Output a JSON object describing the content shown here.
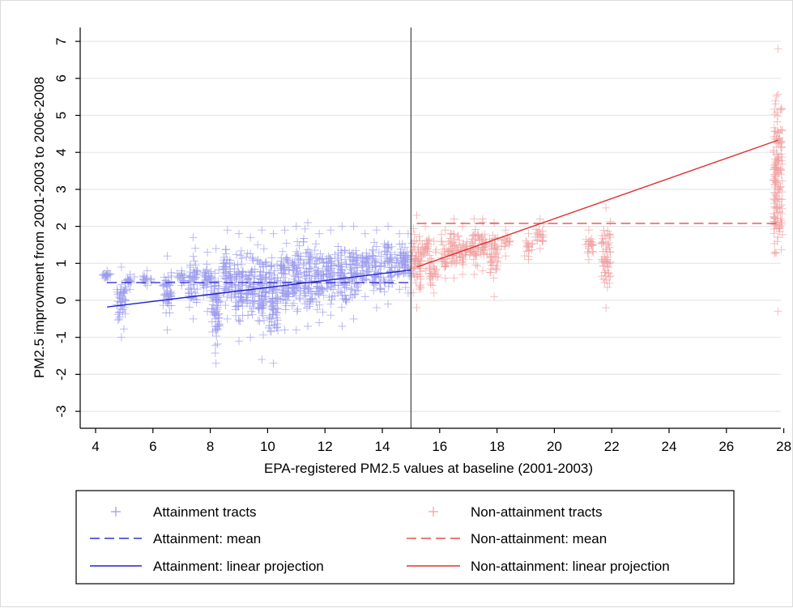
{
  "chart_data": {
    "type": "scatter",
    "xlabel": "EPA-registered PM2.5 values at baseline (2001-2003)",
    "ylabel": "PM2.5 improvment from 2001-2003 to 2006-2008",
    "xlim": [
      4,
      28.5
    ],
    "ylim": [
      -3.4,
      7.1
    ],
    "x_ticks": [
      4,
      6,
      8,
      10,
      12,
      14,
      16,
      18,
      20,
      22,
      24,
      26,
      28
    ],
    "y_ticks": [
      -3,
      -2,
      -1,
      0,
      1,
      2,
      3,
      4,
      5,
      6,
      7
    ],
    "grid": "horizontal",
    "threshold_x": 15,
    "legend_position": "bottom",
    "series": [
      {
        "name": "Attainment tracts",
        "kind": "scatter",
        "marker": "plus",
        "color": "#9999ee",
        "clusters": [
          {
            "x": 4.4,
            "y_min": 0.55,
            "y_max": 0.8
          },
          {
            "x": 4.9,
            "y_min": -1.0,
            "y_max": 0.9
          },
          {
            "x": 5.2,
            "y_min": 0.3,
            "y_max": 0.7
          },
          {
            "x": 5.8,
            "y_min": 0.4,
            "y_max": 0.8
          },
          {
            "x": 6.5,
            "y_min": -0.8,
            "y_max": 1.2
          },
          {
            "x": 7.0,
            "y_min": 0.4,
            "y_max": 0.8
          },
          {
            "x": 7.4,
            "y_min": -0.5,
            "y_max": 1.7
          },
          {
            "x": 7.9,
            "y_min": -0.3,
            "y_max": 1.3
          },
          {
            "x": 8.2,
            "y_min": -1.7,
            "y_max": 1.4
          },
          {
            "x": 8.6,
            "y_min": -0.5,
            "y_max": 1.9
          },
          {
            "x": 9.0,
            "y_min": -1.1,
            "y_max": 1.8
          },
          {
            "x": 9.4,
            "y_min": -1.0,
            "y_max": 1.7
          },
          {
            "x": 9.8,
            "y_min": -1.6,
            "y_max": 1.9
          },
          {
            "x": 10.2,
            "y_min": -1.7,
            "y_max": 1.8
          },
          {
            "x": 10.6,
            "y_min": -0.8,
            "y_max": 1.9
          },
          {
            "x": 11.0,
            "y_min": -0.8,
            "y_max": 2.0
          },
          {
            "x": 11.4,
            "y_min": -0.7,
            "y_max": 2.1
          },
          {
            "x": 11.8,
            "y_min": -0.6,
            "y_max": 1.8
          },
          {
            "x": 12.2,
            "y_min": -0.4,
            "y_max": 1.9
          },
          {
            "x": 12.6,
            "y_min": -0.7,
            "y_max": 2.0
          },
          {
            "x": 13.0,
            "y_min": -0.5,
            "y_max": 2.0
          },
          {
            "x": 13.4,
            "y_min": 0.1,
            "y_max": 1.8
          },
          {
            "x": 13.8,
            "y_min": -0.2,
            "y_max": 1.9
          },
          {
            "x": 14.2,
            "y_min": -0.1,
            "y_max": 2.0
          },
          {
            "x": 14.6,
            "y_min": 0.3,
            "y_max": 1.8
          },
          {
            "x": 14.9,
            "y_min": 0.2,
            "y_max": 1.8
          }
        ]
      },
      {
        "name": "Non-attainment tracts",
        "kind": "scatter",
        "marker": "plus",
        "color": "#f0a0a0",
        "clusters": [
          {
            "x": 15.2,
            "y_min": -0.2,
            "y_max": 2.3
          },
          {
            "x": 15.5,
            "y_min": 0.8,
            "y_max": 2.0
          },
          {
            "x": 15.8,
            "y_min": 0.2,
            "y_max": 1.6
          },
          {
            "x": 16.2,
            "y_min": 0.6,
            "y_max": 1.9
          },
          {
            "x": 16.5,
            "y_min": 0.6,
            "y_max": 2.2
          },
          {
            "x": 16.8,
            "y_min": 0.7,
            "y_max": 2.0
          },
          {
            "x": 17.2,
            "y_min": 0.7,
            "y_max": 2.2
          },
          {
            "x": 17.5,
            "y_min": 0.8,
            "y_max": 2.2
          },
          {
            "x": 17.9,
            "y_min": 0.1,
            "y_max": 2.1
          },
          {
            "x": 18.3,
            "y_min": 1.2,
            "y_max": 1.9
          },
          {
            "x": 19.1,
            "y_min": 1.1,
            "y_max": 1.8
          },
          {
            "x": 19.5,
            "y_min": 1.4,
            "y_max": 2.2
          },
          {
            "x": 21.2,
            "y_min": 1.1,
            "y_max": 1.9
          },
          {
            "x": 21.8,
            "y_min": -0.2,
            "y_max": 2.5
          },
          {
            "x": 27.8,
            "y_min": -0.3,
            "y_max": 6.8
          }
        ]
      },
      {
        "name": "Attainment: mean",
        "kind": "dashed-line",
        "color": "#3333cc",
        "x": [
          4.4,
          15.0
        ],
        "y": [
          0.48,
          0.48
        ]
      },
      {
        "name": "Non-attainment: mean",
        "kind": "dashed-line",
        "color": "#e05050",
        "x": [
          15.2,
          27.9
        ],
        "y": [
          2.08,
          2.08
        ]
      },
      {
        "name": "Attainment: linear projection",
        "kind": "line",
        "color": "#2222cc",
        "x": [
          4.4,
          15.0
        ],
        "y": [
          -0.18,
          0.82
        ]
      },
      {
        "name": "Non-attainment: linear projection",
        "kind": "line",
        "color": "#e03030",
        "x": [
          15.2,
          27.8
        ],
        "y": [
          0.9,
          4.33
        ]
      }
    ],
    "legend": [
      {
        "label": "Attainment tracts",
        "symbol": "plus",
        "color": "#9999ee"
      },
      {
        "label": "Non-attainment tracts",
        "symbol": "plus",
        "color": "#f0a0a0"
      },
      {
        "label": "Attainment: mean",
        "symbol": "dashed",
        "color": "#3333cc"
      },
      {
        "label": "Non-attainment: mean",
        "symbol": "dashed",
        "color": "#e05050"
      },
      {
        "label": "Attainment: linear projection",
        "symbol": "solid",
        "color": "#2222cc"
      },
      {
        "label": "Non-attainment: linear projection",
        "symbol": "solid",
        "color": "#e03030"
      }
    ]
  }
}
